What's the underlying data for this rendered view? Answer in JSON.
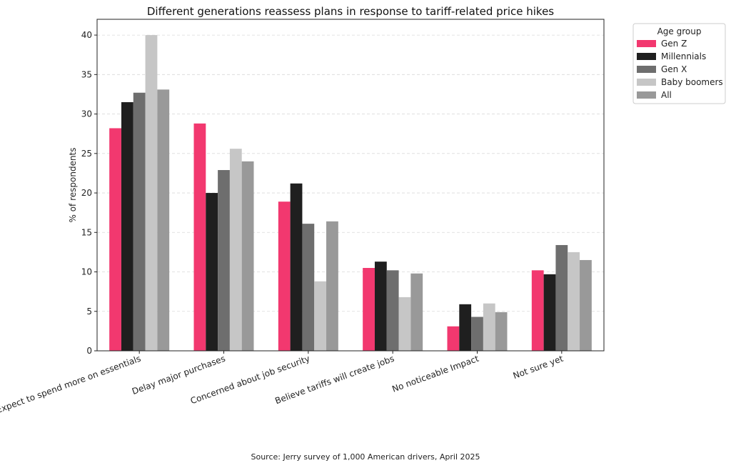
{
  "chart_data": {
    "type": "bar",
    "title": "Different generations reassess plans in response to tariff-related price hikes",
    "xlabel": "",
    "ylabel": "% of respondents",
    "ylim": [
      0,
      42
    ],
    "yticks": [
      0,
      5,
      10,
      15,
      20,
      25,
      30,
      35,
      40
    ],
    "grid": true,
    "legend_title": "Age group",
    "legend_position": "outside-top-right",
    "categories": [
      "Expect to spend more on essentials",
      "Delay major purchases",
      "Concerned about job security",
      "Believe tariffs will create jobs",
      "No noticeable Impact",
      "Not sure yet"
    ],
    "series": [
      {
        "name": "Gen Z",
        "color": "#f2386f",
        "values": [
          28.2,
          28.8,
          18.9,
          10.5,
          3.1,
          10.2
        ]
      },
      {
        "name": "Millennials",
        "color": "#1f1f1f",
        "values": [
          31.5,
          20.0,
          21.2,
          11.3,
          5.9,
          9.7
        ]
      },
      {
        "name": "Gen X",
        "color": "#6e6e6e",
        "values": [
          32.7,
          22.9,
          16.1,
          10.2,
          4.3,
          13.4
        ]
      },
      {
        "name": "Baby boomers",
        "color": "#c6c6c6",
        "values": [
          40.0,
          25.6,
          8.8,
          6.8,
          6.0,
          12.5
        ]
      },
      {
        "name": "All",
        "color": "#999999",
        "values": [
          33.1,
          24.0,
          16.4,
          9.8,
          4.9,
          11.5
        ]
      }
    ],
    "source": "Source: Jerry survey of 1,000 American drivers, April 2025"
  }
}
